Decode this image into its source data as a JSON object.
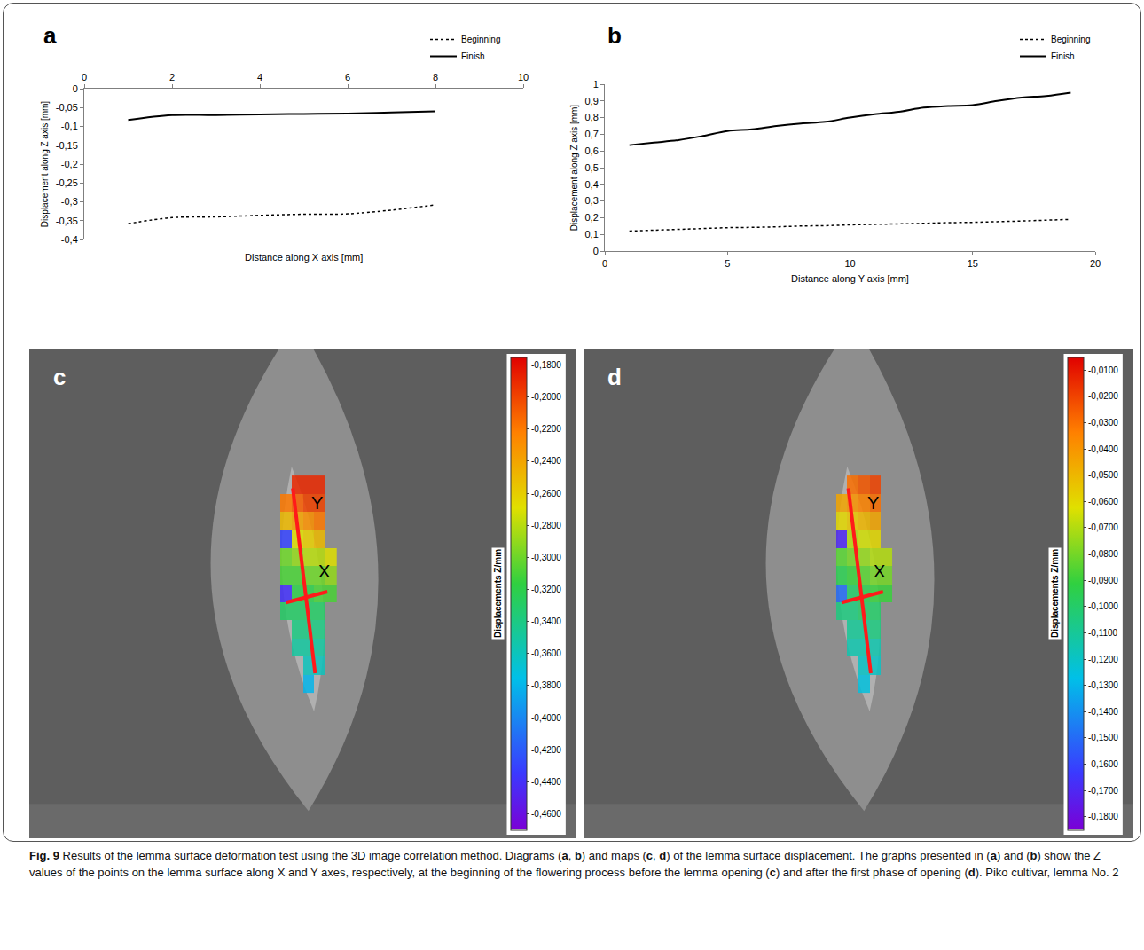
{
  "chart_data": [
    {
      "type": "line",
      "panel_label": "a",
      "xlabel": "Distance along X axis [mm]",
      "ylabel": "Displacement along Z axis [mm]",
      "x": [
        1,
        2,
        3,
        4,
        5,
        6,
        7,
        8
      ],
      "series": [
        {
          "name": "Beginning",
          "color": "#000000",
          "line_style": "dotted",
          "values": [
            -0.358,
            -0.342,
            -0.34,
            -0.336,
            -0.333,
            -0.332,
            -0.322,
            -0.308
          ]
        },
        {
          "name": "Finish",
          "color": "#000000",
          "line_style": "solid",
          "values": [
            -0.083,
            -0.07,
            -0.07,
            -0.068,
            -0.067,
            -0.066,
            -0.063,
            -0.06
          ]
        }
      ],
      "xlim": [
        0,
        10
      ],
      "xticks": [
        0,
        2,
        4,
        6,
        8,
        10
      ],
      "ylim": [
        -0.4,
        0
      ],
      "yticks": [
        0,
        {
          "value": -0.05,
          "label": "-0,05"
        },
        {
          "value": -0.1,
          "label": "-0,1"
        },
        {
          "value": -0.15,
          "label": "-0,15"
        },
        {
          "value": -0.2,
          "label": "-0,2"
        },
        {
          "value": -0.25,
          "label": "-0,25"
        },
        {
          "value": -0.3,
          "label": "-0,3"
        },
        {
          "value": -0.35,
          "label": "-0,35"
        },
        {
          "value": -0.4,
          "label": "-0,4"
        }
      ],
      "grid": false,
      "legend": "top right"
    },
    {
      "type": "line",
      "panel_label": "b",
      "xlabel": "Distance along Y axis [mm]",
      "ylabel": "Displacement along Z axis [mm]",
      "x": [
        1,
        2,
        3,
        4,
        5,
        6,
        7,
        8,
        9,
        10,
        11,
        12,
        13,
        14,
        15,
        16,
        17,
        18,
        19
      ],
      "series": [
        {
          "name": "Beginning",
          "color": "#000000",
          "line_style": "dotted",
          "values": [
            0.12,
            0.125,
            0.13,
            0.135,
            0.14,
            0.142,
            0.145,
            0.15,
            0.152,
            0.157,
            0.16,
            0.163,
            0.166,
            0.17,
            0.172,
            0.176,
            0.18,
            0.185,
            0.19
          ]
        },
        {
          "name": "Finish",
          "color": "#000000",
          "line_style": "solid",
          "values": [
            0.635,
            0.65,
            0.665,
            0.69,
            0.72,
            0.73,
            0.75,
            0.765,
            0.775,
            0.8,
            0.82,
            0.835,
            0.86,
            0.87,
            0.875,
            0.9,
            0.92,
            0.93,
            0.95
          ]
        }
      ],
      "xlim": [
        0,
        20
      ],
      "xticks": [
        0,
        5,
        10,
        15,
        20
      ],
      "ylim": [
        0,
        1
      ],
      "yticks": [
        0,
        {
          "value": 0.1,
          "label": "0,1"
        },
        {
          "value": 0.2,
          "label": "0,2"
        },
        {
          "value": 0.3,
          "label": "0,3"
        },
        {
          "value": 0.4,
          "label": "0,4"
        },
        {
          "value": 0.5,
          "label": "0,5"
        },
        {
          "value": 0.6,
          "label": "0,6"
        },
        {
          "value": 0.7,
          "label": "0,7"
        },
        {
          "value": 0.8,
          "label": "0,8"
        },
        {
          "value": 0.9,
          "label": "0,9"
        },
        1
      ],
      "grid": false,
      "legend": "top right"
    },
    {
      "type": "heatmap",
      "panel_label": "c",
      "colorbar_title": "Displacements Z/mm",
      "annotations": [
        "Y",
        "X"
      ],
      "tick_labels": false,
      "z": [
        [
          null,
          null,
          null,
          -0.38,
          null,
          null
        ],
        [
          null,
          null,
          null,
          -0.36,
          -0.36,
          null
        ],
        [
          null,
          null,
          -0.35,
          -0.35,
          -0.35,
          null
        ],
        [
          null,
          null,
          -0.34,
          -0.34,
          -0.34,
          null
        ],
        [
          null,
          -0.33,
          -0.33,
          -0.33,
          -0.33,
          null
        ],
        [
          null,
          -0.44,
          -0.32,
          -0.32,
          -0.31,
          -0.31
        ],
        [
          null,
          -0.31,
          -0.31,
          -0.3,
          -0.3,
          -0.29
        ],
        [
          null,
          -0.3,
          -0.29,
          -0.28,
          -0.28,
          -0.27
        ],
        [
          null,
          -0.43,
          -0.27,
          -0.26,
          -0.25,
          null
        ],
        [
          null,
          -0.25,
          -0.24,
          -0.23,
          -0.22,
          null
        ],
        [
          null,
          -0.22,
          -0.21,
          -0.2,
          -0.2,
          null
        ],
        [
          null,
          null,
          -0.19,
          -0.19,
          -0.19,
          null
        ]
      ],
      "zlim": [
        -0.47,
        -0.175
      ],
      "zticks": [
        {
          "value": -0.18,
          "label": "-0,1800"
        },
        {
          "value": -0.2,
          "label": "-0,2000"
        },
        {
          "value": -0.22,
          "label": "-0,2200"
        },
        {
          "value": -0.24,
          "label": "-0,2400"
        },
        {
          "value": -0.26,
          "label": "-0,2600"
        },
        {
          "value": -0.28,
          "label": "-0,2800"
        },
        {
          "value": -0.3,
          "label": "-0,3000"
        },
        {
          "value": -0.32,
          "label": "-0,3200"
        },
        {
          "value": -0.34,
          "label": "-0,3400"
        },
        {
          "value": -0.36,
          "label": "-0,3600"
        },
        {
          "value": -0.38,
          "label": "-0,3800"
        },
        {
          "value": -0.4,
          "label": "-0,4000"
        },
        {
          "value": -0.42,
          "label": "-0,4200"
        },
        {
          "value": -0.44,
          "label": "-0,4400"
        },
        {
          "value": -0.46,
          "label": "-0,4600"
        }
      ]
    },
    {
      "type": "heatmap",
      "panel_label": "d",
      "colorbar_title": "Displacements Z/mm",
      "annotations": [
        "Y",
        "X"
      ],
      "tick_labels": false,
      "z": [
        [
          null,
          null,
          null,
          -0.125,
          null,
          null
        ],
        [
          null,
          null,
          null,
          -0.12,
          -0.12,
          null
        ],
        [
          null,
          null,
          -0.115,
          -0.115,
          -0.115,
          null
        ],
        [
          null,
          null,
          -0.11,
          -0.11,
          -0.105,
          null
        ],
        [
          null,
          -0.105,
          -0.105,
          -0.1,
          -0.1,
          null
        ],
        [
          null,
          -0.15,
          -0.1,
          -0.095,
          -0.09,
          -0.09
        ],
        [
          null,
          -0.095,
          -0.09,
          -0.085,
          -0.08,
          -0.08
        ],
        [
          null,
          -0.085,
          -0.08,
          -0.075,
          -0.07,
          -0.07
        ],
        [
          null,
          -0.17,
          -0.07,
          -0.065,
          -0.06,
          null
        ],
        [
          null,
          -0.06,
          -0.055,
          -0.05,
          -0.045,
          null
        ],
        [
          null,
          -0.045,
          -0.04,
          -0.035,
          -0.03,
          null
        ],
        [
          null,
          null,
          -0.03,
          -0.025,
          -0.02,
          null
        ]
      ],
      "zlim": [
        -0.185,
        -0.005
      ],
      "zticks": [
        {
          "value": -0.01,
          "label": "-0,0100"
        },
        {
          "value": -0.02,
          "label": "-0,0200"
        },
        {
          "value": -0.03,
          "label": "-0,0300"
        },
        {
          "value": -0.04,
          "label": "-0,0400"
        },
        {
          "value": -0.05,
          "label": "-0,0500"
        },
        {
          "value": -0.06,
          "label": "-0,0600"
        },
        {
          "value": -0.07,
          "label": "-0,0700"
        },
        {
          "value": -0.08,
          "label": "-0,0800"
        },
        {
          "value": -0.09,
          "label": "-0,0900"
        },
        {
          "value": -0.1,
          "label": "-0,1000"
        },
        {
          "value": -0.11,
          "label": "-0,1100"
        },
        {
          "value": -0.12,
          "label": "-0,1200"
        },
        {
          "value": -0.13,
          "label": "-0,1300"
        },
        {
          "value": -0.14,
          "label": "-0,1400"
        },
        {
          "value": -0.15,
          "label": "-0,1500"
        },
        {
          "value": -0.16,
          "label": "-0,1600"
        },
        {
          "value": -0.17,
          "label": "-0,1700"
        },
        {
          "value": -0.18,
          "label": "-0,1800"
        }
      ]
    }
  ],
  "caption": {
    "label": "Fig. 9",
    "text": "Results of the lemma surface deformation test using the 3D image correlation method. Diagrams (a, b) and maps (c, d) of the lemma surface displacement. The graphs presented in (a) and (b) show the Z values of the points on the lemma surface along X and Y axes, respectively, at the beginning of the flowering process before the lemma opening (c) and after the first phase of opening (d). Piko cultivar, lemma No. 2"
  }
}
